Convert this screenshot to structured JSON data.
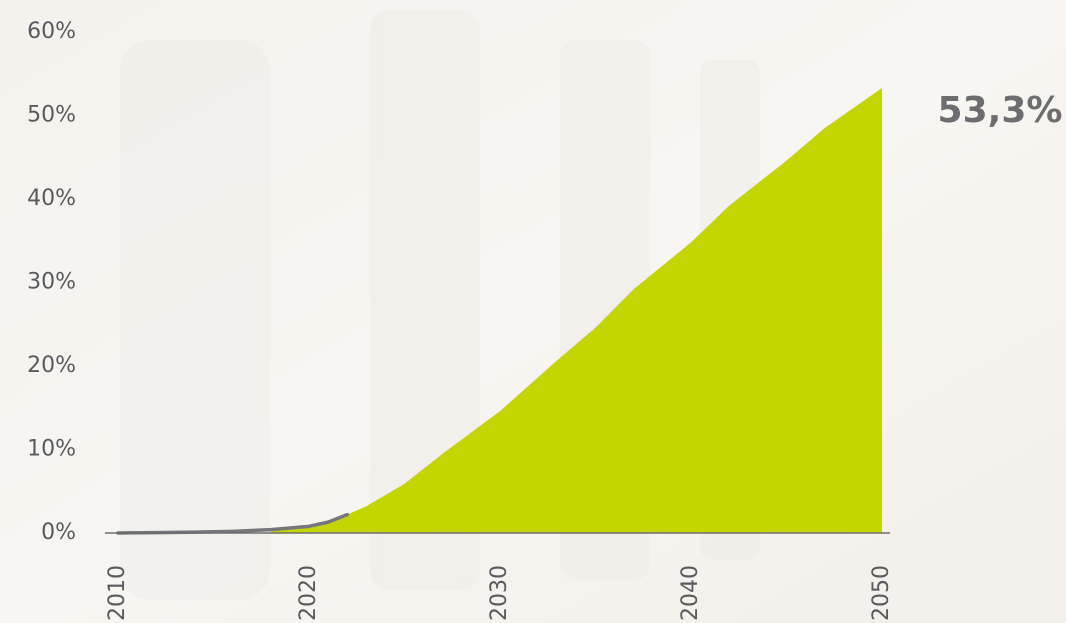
{
  "chart_data": {
    "type": "area",
    "series": [
      {
        "color": "#77777a",
        "kind": "line",
        "x": [
          2010,
          2012,
          2014,
          2016,
          2018,
          2020,
          2021,
          2022
        ],
        "values": [
          0,
          0.05,
          0.1,
          0.2,
          0.4,
          0.8,
          1.3,
          2.2
        ]
      },
      {
        "color": "#c3d600",
        "kind": "area",
        "x": [
          2018,
          2020,
          2022,
          2023,
          2025,
          2027,
          2030,
          2033,
          2035,
          2037,
          2040,
          2042,
          2045,
          2047,
          2050
        ],
        "values": [
          0.3,
          0.8,
          2.2,
          3.2,
          5.9,
          9.5,
          14.6,
          20.7,
          24.6,
          29.2,
          34.8,
          39.2,
          44.6,
          48.5,
          53.3
        ],
        "value_labels": [
          null,
          null,
          null,
          null,
          null,
          null,
          null,
          null,
          null,
          null,
          null,
          null,
          null,
          null,
          "53,3%"
        ]
      }
    ],
    "xlim": [
      2010,
      2050
    ],
    "xticks": [
      2010,
      2020,
      2030,
      2040,
      2050
    ],
    "ylim": [
      0,
      60
    ],
    "yticks": [
      {
        "value": 0,
        "label": "0%"
      },
      {
        "value": 10,
        "label": "10%"
      },
      {
        "value": 20,
        "label": "20%"
      },
      {
        "value": 30,
        "label": "30%"
      },
      {
        "value": 40,
        "label": "40%"
      },
      {
        "value": 50,
        "label": "50%"
      },
      {
        "value": 60,
        "label": "60%"
      }
    ],
    "grid": false
  }
}
